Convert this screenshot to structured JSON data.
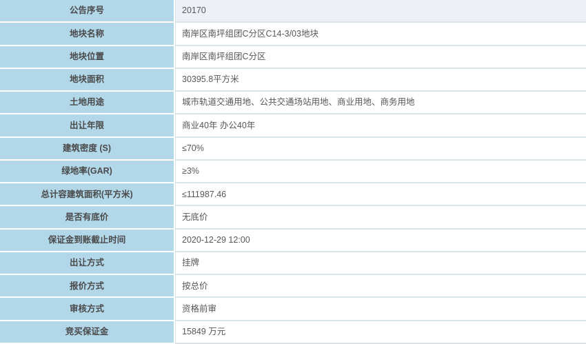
{
  "colors": {
    "label_bg": "#b2d7e8",
    "value_bg": "#ffffff",
    "highlight_value_bg": "#eef0f7",
    "row_border": "#d9e5e8",
    "label_text": "#4a4a4a",
    "value_text": "#575757",
    "gap_color": "#ffffff"
  },
  "table": {
    "rows": [
      {
        "label": "公告序号",
        "value": "20170",
        "highlighted": true
      },
      {
        "label": "地块名称",
        "value": "南岸区南坪组团C分区C14-3/03地块",
        "highlighted": false
      },
      {
        "label": "地块位置",
        "value": "南岸区南坪组团C分区",
        "highlighted": false
      },
      {
        "label": "地块面积",
        "value": "30395.8平方米",
        "highlighted": false
      },
      {
        "label": "土地用途",
        "value": "城市轨道交通用地、公共交通场站用地、商业用地、商务用地",
        "highlighted": false
      },
      {
        "label": "出让年限",
        "value": "商业40年 办公40年",
        "highlighted": false
      },
      {
        "label": "建筑密度 (S)",
        "value": "≤70%",
        "highlighted": false
      },
      {
        "label": "绿地率(GAR)",
        "value": "≥3%",
        "highlighted": false
      },
      {
        "label": "总计容建筑面积(平方米)",
        "value": "≤111987.46",
        "highlighted": false
      },
      {
        "label": "是否有底价",
        "value": "无底价",
        "highlighted": false
      },
      {
        "label": "保证金到账截止时间",
        "value": "2020-12-29 12:00",
        "highlighted": false
      },
      {
        "label": "出让方式",
        "value": "挂牌",
        "highlighted": false
      },
      {
        "label": "报价方式",
        "value": "按总价",
        "highlighted": false
      },
      {
        "label": "审核方式",
        "value": "资格前审",
        "highlighted": false
      },
      {
        "label": "竞买保证金",
        "value": "15849 万元",
        "highlighted": false
      }
    ]
  }
}
